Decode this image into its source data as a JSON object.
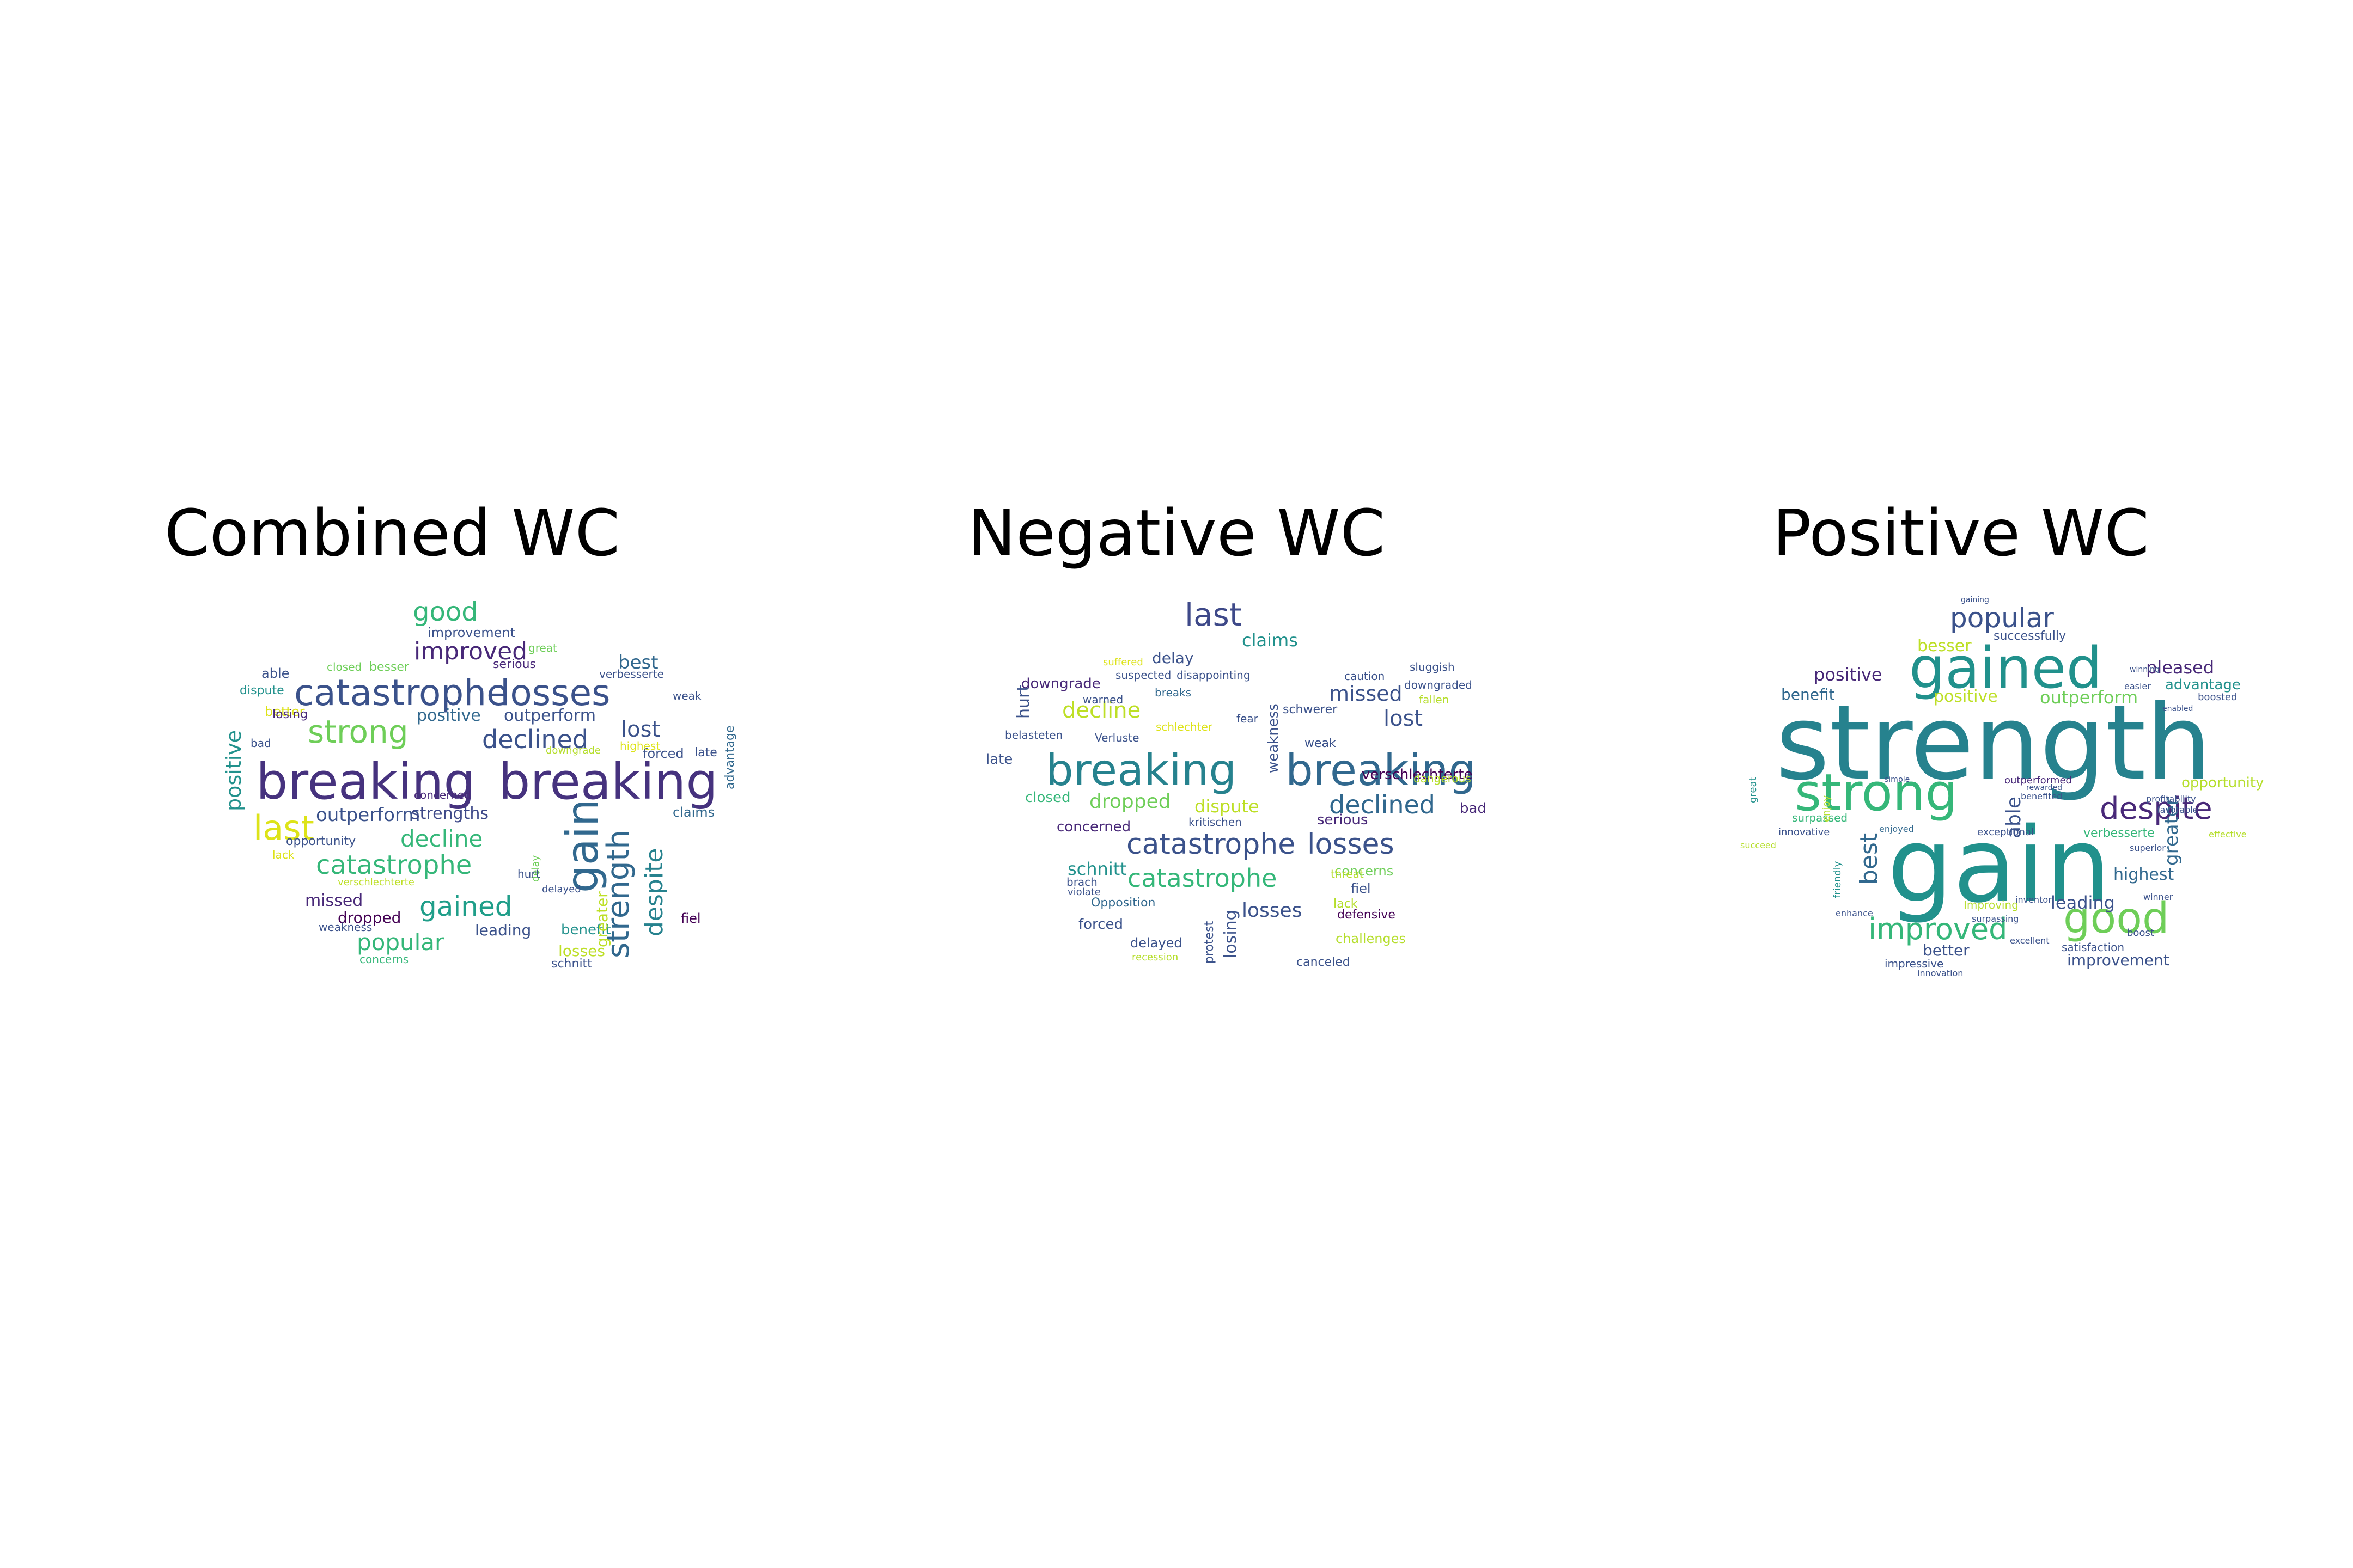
{
  "panels": [
    {
      "title": "Combined WC",
      "words": [
        {
          "t": "breaking",
          "c": "#46327e"
        },
        {
          "t": "breaking",
          "c": "#46327e"
        },
        {
          "t": "catastrophe",
          "c": "#3b528b"
        },
        {
          "t": "losses",
          "c": "#3b528b"
        },
        {
          "t": "gain",
          "c": "#31688e"
        },
        {
          "t": "strength",
          "c": "#31688e"
        },
        {
          "t": "strong",
          "c": "#6ece58"
        },
        {
          "t": "last",
          "c": "#dde318"
        },
        {
          "t": "declined",
          "c": "#3b528b"
        },
        {
          "t": "improved",
          "c": "#482878"
        },
        {
          "t": "good",
          "c": "#35b779"
        },
        {
          "t": "despite",
          "c": "#26828e"
        },
        {
          "t": "catastrophe",
          "c": "#35b779"
        },
        {
          "t": "gained",
          "c": "#1f9e89"
        },
        {
          "t": "decline",
          "c": "#35b779"
        },
        {
          "t": "popular",
          "c": "#35b779"
        },
        {
          "t": "lost",
          "c": "#3b528b"
        },
        {
          "t": "positive",
          "c": "#21918c"
        },
        {
          "t": "outperform",
          "c": "#3b528b"
        },
        {
          "t": "strengths",
          "c": "#3e4989"
        },
        {
          "t": "positive",
          "c": "#31688e"
        },
        {
          "t": "outperform",
          "c": "#3b528b"
        },
        {
          "t": "missed",
          "c": "#482878"
        },
        {
          "t": "dropped",
          "c": "#440154"
        },
        {
          "t": "best",
          "c": "#31688e"
        },
        {
          "t": "improvement",
          "c": "#3b528b"
        },
        {
          "t": "forced",
          "c": "#3b528b"
        },
        {
          "t": "late",
          "c": "#3b528b"
        },
        {
          "t": "claims",
          "c": "#31688e"
        },
        {
          "t": "leading",
          "c": "#3b528b"
        },
        {
          "t": "benefit",
          "c": "#21918c"
        },
        {
          "t": "losses",
          "c": "#bddf26"
        },
        {
          "t": "schnitt",
          "c": "#3b528b"
        },
        {
          "t": "fiel",
          "c": "#440154"
        },
        {
          "t": "greater",
          "c": "#bddf26"
        },
        {
          "t": "advantage",
          "c": "#31688e"
        },
        {
          "t": "able",
          "c": "#3b528b"
        },
        {
          "t": "dispute",
          "c": "#21918c"
        },
        {
          "t": "better",
          "c": "#dde318"
        },
        {
          "t": "losing",
          "c": "#482878"
        },
        {
          "t": "opportunity",
          "c": "#3b528b"
        },
        {
          "t": "weakness",
          "c": "#3b528b"
        },
        {
          "t": "concerns",
          "c": "#35b779"
        },
        {
          "t": "besser",
          "c": "#6ece58"
        },
        {
          "t": "closed",
          "c": "#6ece58"
        },
        {
          "t": "verbesserte",
          "c": "#3b528b"
        },
        {
          "t": "weak",
          "c": "#3b528b"
        },
        {
          "t": "highest",
          "c": "#dde318"
        },
        {
          "t": "downgrade",
          "c": "#b5de2b"
        },
        {
          "t": "concerned",
          "c": "#482878"
        },
        {
          "t": "delay",
          "c": "#6ece58"
        },
        {
          "t": "hurt",
          "c": "#3b528b"
        },
        {
          "t": "delayed",
          "c": "#3b528b"
        },
        {
          "t": "bad",
          "c": "#3b528b"
        },
        {
          "t": "great",
          "c": "#6ece58"
        },
        {
          "t": "serious",
          "c": "#482878"
        },
        {
          "t": "verschlechterte",
          "c": "#bddf26"
        },
        {
          "t": "lack",
          "c": "#dde318"
        }
      ]
    },
    {
      "title": "Negative WC",
      "words": [
        {
          "t": "breaking",
          "c": "#26828e"
        },
        {
          "t": "breaking",
          "c": "#31688e"
        },
        {
          "t": "catastrophe",
          "c": "#3b528b"
        },
        {
          "t": "losses",
          "c": "#3b528b"
        },
        {
          "t": "last",
          "c": "#3e4989"
        },
        {
          "t": "catastrophe",
          "c": "#35b779"
        },
        {
          "t": "declined",
          "c": "#31688e"
        },
        {
          "t": "decline",
          "c": "#bddf26"
        },
        {
          "t": "dropped",
          "c": "#6ece58"
        },
        {
          "t": "missed",
          "c": "#3b528b"
        },
        {
          "t": "lost",
          "c": "#3b528b"
        },
        {
          "t": "claims",
          "c": "#21918c"
        },
        {
          "t": "losses",
          "c": "#3b528b"
        },
        {
          "t": "dispute",
          "c": "#bddf26"
        },
        {
          "t": "schnitt",
          "c": "#21918c"
        },
        {
          "t": "losing",
          "c": "#3b528b"
        },
        {
          "t": "verschlechterte",
          "c": "#440154"
        },
        {
          "t": "concerned",
          "c": "#482878"
        },
        {
          "t": "delay",
          "c": "#3b528b"
        },
        {
          "t": "hurt",
          "c": "#3b528b"
        },
        {
          "t": "closed",
          "c": "#35b779"
        },
        {
          "t": "late",
          "c": "#3b528b"
        },
        {
          "t": "forced",
          "c": "#3b528b"
        },
        {
          "t": "weakness",
          "c": "#3b528b"
        },
        {
          "t": "delayed",
          "c": "#3b528b"
        },
        {
          "t": "protest",
          "c": "#3b528b"
        },
        {
          "t": "challenges",
          "c": "#b5de2b"
        },
        {
          "t": "concerns",
          "c": "#6ece58"
        },
        {
          "t": "serious",
          "c": "#482878"
        },
        {
          "t": "defensive",
          "c": "#440154"
        },
        {
          "t": "fiel",
          "c": "#3b528b"
        },
        {
          "t": "bad",
          "c": "#482878"
        },
        {
          "t": "downgrade",
          "c": "#482878"
        },
        {
          "t": "weak",
          "c": "#3b528b"
        },
        {
          "t": "downgraded",
          "c": "#3b528b"
        },
        {
          "t": "caution",
          "c": "#3b528b"
        },
        {
          "t": "Opposition",
          "c": "#31688e"
        },
        {
          "t": "threat",
          "c": "#b5de2b"
        },
        {
          "t": "dangerous",
          "c": "#b5de2b"
        },
        {
          "t": "fallen",
          "c": "#b5de2b"
        },
        {
          "t": "lack",
          "c": "#b5de2b"
        },
        {
          "t": "Verluste",
          "c": "#3b528b"
        },
        {
          "t": "belasteten",
          "c": "#3b528b"
        },
        {
          "t": "warned",
          "c": "#3b528b"
        },
        {
          "t": "suspected",
          "c": "#3b528b"
        },
        {
          "t": "disappointing",
          "c": "#3b528b"
        },
        {
          "t": "breaks",
          "c": "#31688e"
        },
        {
          "t": "fear",
          "c": "#3b528b"
        },
        {
          "t": "schwerer",
          "c": "#3b528b"
        },
        {
          "t": "canceled",
          "c": "#3b528b"
        },
        {
          "t": "brach",
          "c": "#3b528b"
        },
        {
          "t": "violate",
          "c": "#3b528b"
        },
        {
          "t": "recession",
          "c": "#b5de2b"
        },
        {
          "t": "kritischen",
          "c": "#3b528b"
        },
        {
          "t": "schlechter",
          "c": "#dde318"
        },
        {
          "t": "suffered",
          "c": "#dde318"
        },
        {
          "t": "sluggish",
          "c": "#3b528b"
        }
      ]
    },
    {
      "title": "Positive WC",
      "words": [
        {
          "t": "strength",
          "c": "#26828e"
        },
        {
          "t": "gain",
          "c": "#21918c"
        },
        {
          "t": "gained",
          "c": "#21918c"
        },
        {
          "t": "strong",
          "c": "#35b779"
        },
        {
          "t": "good",
          "c": "#6ece58"
        },
        {
          "t": "despite",
          "c": "#482878"
        },
        {
          "t": "improved",
          "c": "#35b779"
        },
        {
          "t": "popular",
          "c": "#3b528b"
        },
        {
          "t": "positive",
          "c": "#482878"
        },
        {
          "t": "outperform",
          "c": "#6ece58"
        },
        {
          "t": "best",
          "c": "#31688e"
        },
        {
          "t": "able",
          "c": "#3b528b"
        },
        {
          "t": "greater",
          "c": "#31688e"
        },
        {
          "t": "highest",
          "c": "#31688e"
        },
        {
          "t": "leading",
          "c": "#3b528b"
        },
        {
          "t": "improvement",
          "c": "#3b528b"
        },
        {
          "t": "better",
          "c": "#3b528b"
        },
        {
          "t": "besser",
          "c": "#bddf26"
        },
        {
          "t": "pleased",
          "c": "#482878"
        },
        {
          "t": "advantage",
          "c": "#21918c"
        },
        {
          "t": "benefit",
          "c": "#31688e"
        },
        {
          "t": "positive",
          "c": "#bddf26"
        },
        {
          "t": "opportunity",
          "c": "#b5de2b"
        },
        {
          "t": "verbesserte",
          "c": "#35b779"
        },
        {
          "t": "successfully",
          "c": "#3b528b"
        },
        {
          "t": "innovative",
          "c": "#3b528b"
        },
        {
          "t": "surpassed",
          "c": "#35b779"
        },
        {
          "t": "satisfaction",
          "c": "#3b528b"
        },
        {
          "t": "impressive",
          "c": "#3b528b"
        },
        {
          "t": "boosted",
          "c": "#3b528b"
        },
        {
          "t": "friendly",
          "c": "#21918c"
        },
        {
          "t": "enjoy",
          "c": "#b5de2b"
        },
        {
          "t": "great",
          "c": "#21918c"
        },
        {
          "t": "exceptional",
          "c": "#3b528b"
        },
        {
          "t": "excellent",
          "c": "#3b528b"
        },
        {
          "t": "boost",
          "c": "#3b528b"
        },
        {
          "t": "Improving",
          "c": "#b5de2b"
        },
        {
          "t": "surpassing",
          "c": "#3b528b"
        },
        {
          "t": "innovation",
          "c": "#3b528b"
        },
        {
          "t": "outperformed",
          "c": "#482878"
        },
        {
          "t": "superior",
          "c": "#3b528b"
        },
        {
          "t": "favorable",
          "c": "#3b528b"
        },
        {
          "t": "enjoyed",
          "c": "#31688e"
        },
        {
          "t": "benefited",
          "c": "#3b528b"
        },
        {
          "t": "winner",
          "c": "#3b528b"
        },
        {
          "t": "rewarded",
          "c": "#3b528b"
        },
        {
          "t": "succeed",
          "c": "#b5de2b"
        },
        {
          "t": "enhance",
          "c": "#3b528b"
        },
        {
          "t": "profitability",
          "c": "#3b528b"
        },
        {
          "t": "inventor",
          "c": "#3b528b"
        },
        {
          "t": "enabled",
          "c": "#3b528b"
        },
        {
          "t": "simple",
          "c": "#3b528b"
        },
        {
          "t": "gaining",
          "c": "#3b528b"
        },
        {
          "t": "winning",
          "c": "#3b528b"
        },
        {
          "t": "effective",
          "c": "#b5de2b"
        },
        {
          "t": "easier",
          "c": "#3b528b"
        }
      ]
    }
  ]
}
